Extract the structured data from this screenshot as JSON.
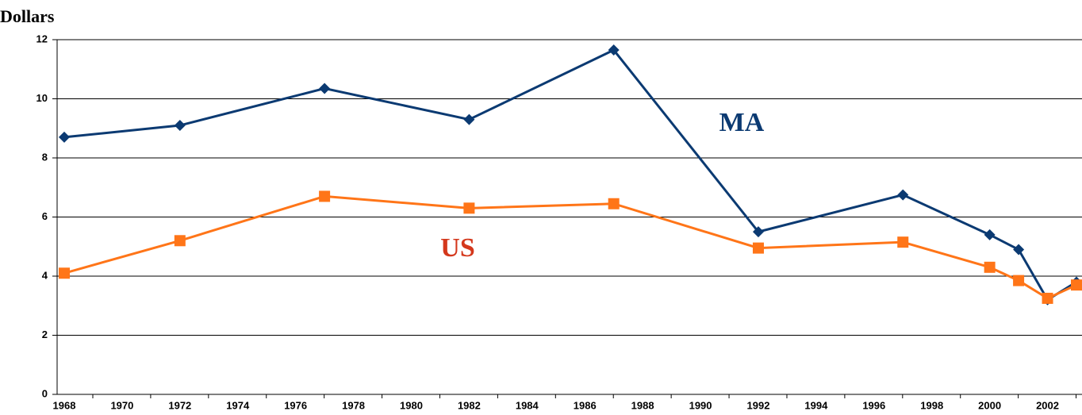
{
  "chart_data": {
    "type": "line",
    "title": "Dollars",
    "x": [
      1968,
      1972,
      1977,
      1982,
      1987,
      1992,
      1997,
      2000,
      2001,
      2002,
      2003
    ],
    "series": [
      {
        "name": "MA",
        "color": "#0b3a72",
        "marker": "diamond",
        "label_color": "#0b3a72",
        "values": [
          8.7,
          9.1,
          10.35,
          9.3,
          11.65,
          5.5,
          6.75,
          5.4,
          4.9,
          3.2,
          3.8
        ]
      },
      {
        "name": "US",
        "color": "#ff7518",
        "marker": "square",
        "label_color": "#d4381c",
        "values": [
          4.1,
          5.2,
          6.7,
          6.3,
          6.45,
          4.95,
          5.15,
          4.3,
          3.85,
          3.25,
          3.7
        ]
      }
    ],
    "xlim": [
      1968,
      2003
    ],
    "xticks": [
      1968,
      1970,
      1972,
      1974,
      1976,
      1978,
      1980,
      1982,
      1984,
      1986,
      1988,
      1990,
      1992,
      1994,
      1996,
      1998,
      2000,
      2002
    ],
    "ylim": [
      0,
      12
    ],
    "yticks": [
      0,
      2,
      4,
      6,
      8,
      10,
      12
    ],
    "grid": true
  }
}
